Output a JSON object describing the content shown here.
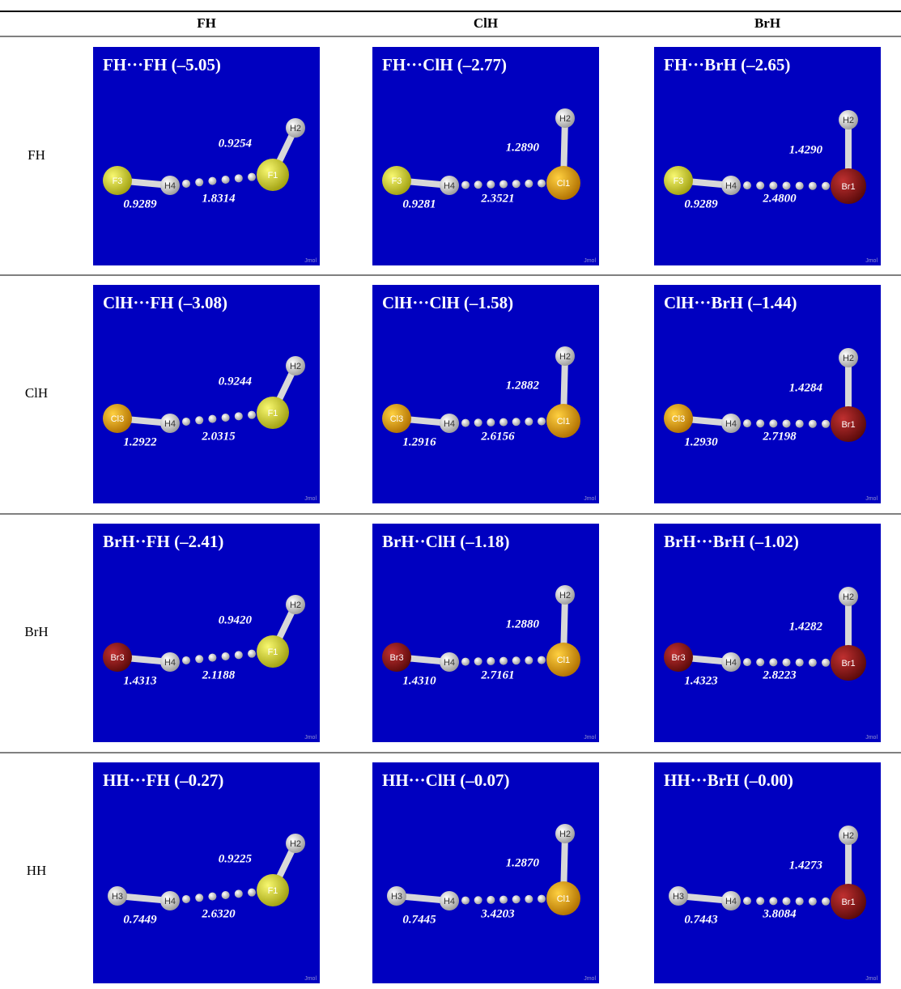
{
  "table": {
    "columns": [
      "FH",
      "ClH",
      "BrH"
    ],
    "watermark": "Jmol",
    "rows": [
      {
        "label": "FH",
        "cells": [
          {
            "title": "FH···FH (–5.05)",
            "atoms": [
              "F3",
              "H4",
              "F1",
              "H2"
            ],
            "bonds": [
              "0.9289",
              "1.8314",
              "0.9254"
            ]
          },
          {
            "title": "FH···ClH (–2.77)",
            "atoms": [
              "F3",
              "H4",
              "Cl1",
              "H2"
            ],
            "bonds": [
              "0.9281",
              "2.3521",
              "1.2890"
            ]
          },
          {
            "title": "FH···BrH (–2.65)",
            "atoms": [
              "F3",
              "H4",
              "Br1",
              "H2"
            ],
            "bonds": [
              "0.9289",
              "2.4800",
              "1.4290"
            ]
          }
        ]
      },
      {
        "label": "ClH",
        "cells": [
          {
            "title": "ClH···FH (–3.08)",
            "atoms": [
              "Cl3",
              "H4",
              "F1",
              "H2"
            ],
            "bonds": [
              "1.2922",
              "2.0315",
              "0.9244"
            ]
          },
          {
            "title": "ClH···ClH (–1.58)",
            "atoms": [
              "Cl3",
              "H4",
              "Cl1",
              "H2"
            ],
            "bonds": [
              "1.2916",
              "2.6156",
              "1.2882"
            ]
          },
          {
            "title": "ClH···BrH (–1.44)",
            "atoms": [
              "Cl3",
              "H4",
              "Br1",
              "H2"
            ],
            "bonds": [
              "1.2930",
              "2.7198",
              "1.4284"
            ]
          }
        ]
      },
      {
        "label": "BrH",
        "cells": [
          {
            "title": "BrH··FH (–2.41)",
            "atoms": [
              "Br3",
              "H4",
              "F1",
              "H2"
            ],
            "bonds": [
              "1.4313",
              "2.1188",
              "0.9420"
            ]
          },
          {
            "title": "BrH··ClH (–1.18)",
            "atoms": [
              "Br3",
              "H4",
              "Cl1",
              "H2"
            ],
            "bonds": [
              "1.4310",
              "2.7161",
              "1.2880"
            ]
          },
          {
            "title": "BrH···BrH (–1.02)",
            "atoms": [
              "Br3",
              "H4",
              "Br1",
              "H2"
            ],
            "bonds": [
              "1.4323",
              "2.8223",
              "1.4282"
            ]
          }
        ]
      },
      {
        "label": "HH",
        "cells": [
          {
            "title": "HH···FH (–0.27)",
            "atoms": [
              "H3",
              "H4",
              "F1",
              "H2"
            ],
            "bonds": [
              "0.7449",
              "2.6320",
              "0.9225"
            ]
          },
          {
            "title": "HH···ClH (–0.07)",
            "atoms": [
              "H3",
              "H4",
              "Cl1",
              "H2"
            ],
            "bonds": [
              "0.7445",
              "3.4203",
              "1.2870"
            ]
          },
          {
            "title": "HH···BrH (–0.00)",
            "atoms": [
              "H3",
              "H4",
              "Br1",
              "H2"
            ],
            "bonds": [
              "0.7443",
              "3.8084",
              "1.4273"
            ]
          }
        ]
      }
    ]
  }
}
